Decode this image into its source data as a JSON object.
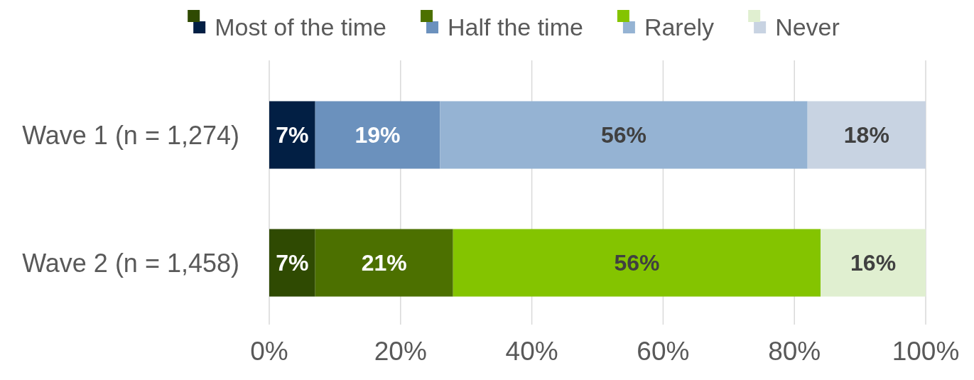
{
  "chart_data": {
    "type": "bar",
    "orientation": "horizontal",
    "stacked": true,
    "categories": [
      "Wave 1 (n = 1,274)",
      "Wave 2 (n = 1,458)"
    ],
    "series": [
      {
        "name": "Most of the time",
        "colors": [
          "#021f44",
          "#2f4a02"
        ],
        "values": [
          7,
          7
        ],
        "value_labels": [
          "7%",
          "7%"
        ]
      },
      {
        "name": "Half the time",
        "colors": [
          "#6b91bd",
          "#4c7000"
        ],
        "values": [
          19,
          21
        ],
        "value_labels": [
          "19%",
          "21%"
        ]
      },
      {
        "name": "Rarely",
        "colors": [
          "#95b3d3",
          "#84c400"
        ],
        "values": [
          56,
          56
        ],
        "value_labels": [
          "56%",
          "56%"
        ]
      },
      {
        "name": "Never",
        "colors": [
          "#c8d3e2",
          "#e0efd0"
        ],
        "values": [
          18,
          16
        ],
        "value_labels": [
          "18%",
          "16%"
        ]
      }
    ],
    "xlim": [
      0,
      100
    ],
    "xticks": [
      {
        "value": 0,
        "label": "0%"
      },
      {
        "value": 20,
        "label": "20%"
      },
      {
        "value": 40,
        "label": "40%"
      },
      {
        "value": 60,
        "label": "60%"
      },
      {
        "value": 80,
        "label": "80%"
      },
      {
        "value": 100,
        "label": "100%"
      }
    ],
    "grid": "x",
    "legend": "top"
  }
}
